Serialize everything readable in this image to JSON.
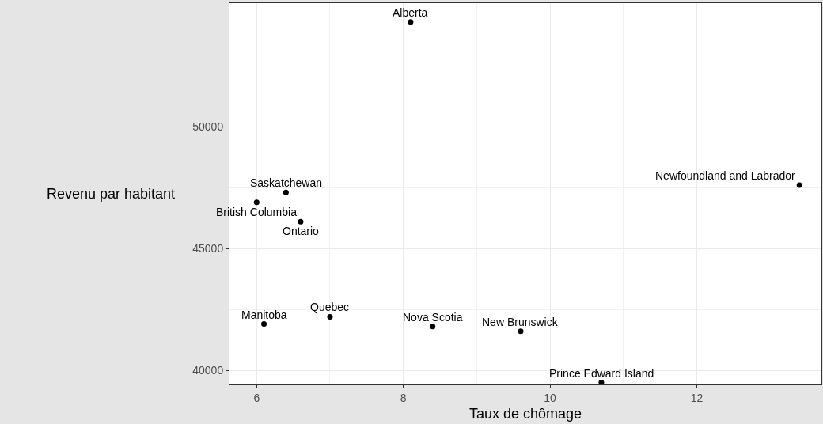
{
  "chart_data": {
    "type": "scatter",
    "xlabel": "Taux de chômage",
    "ylabel": "Revenu par habitant",
    "x": [
      8.1,
      6.4,
      6.0,
      6.6,
      13.4,
      6.1,
      7.0,
      8.4,
      9.6,
      10.7
    ],
    "values": [
      54300,
      47300,
      46900,
      46100,
      47600,
      41900,
      42200,
      41800,
      41600,
      39500
    ],
    "color": "#000000",
    "marker": "circle",
    "grid": true,
    "xlim": [
      5.63,
      13.7
    ],
    "xticks": [
      6,
      8,
      10,
      12
    ],
    "ylim": [
      39420,
      55070
    ],
    "yticks": [
      40000,
      45000,
      50000
    ],
    "annotations": [
      {
        "text": "Alberta",
        "x": 8.1,
        "y": 54300
      },
      {
        "text": "Saskatchewan",
        "x": 6.4,
        "y": 47300
      },
      {
        "text": "British Columbia",
        "x": 6.0,
        "y": 46900
      },
      {
        "text": "Ontario",
        "x": 6.6,
        "y": 46100
      },
      {
        "text": "Newfoundland and Labrador",
        "x": 13.4,
        "y": 47600
      },
      {
        "text": "Manitoba",
        "x": 6.1,
        "y": 41900
      },
      {
        "text": "Quebec",
        "x": 7.0,
        "y": 42200
      },
      {
        "text": "Nova Scotia",
        "x": 8.4,
        "y": 41800
      },
      {
        "text": "New Brunswick",
        "x": 9.6,
        "y": 41600
      },
      {
        "text": "Prince Edward Island",
        "x": 10.7,
        "y": 39500
      }
    ]
  }
}
